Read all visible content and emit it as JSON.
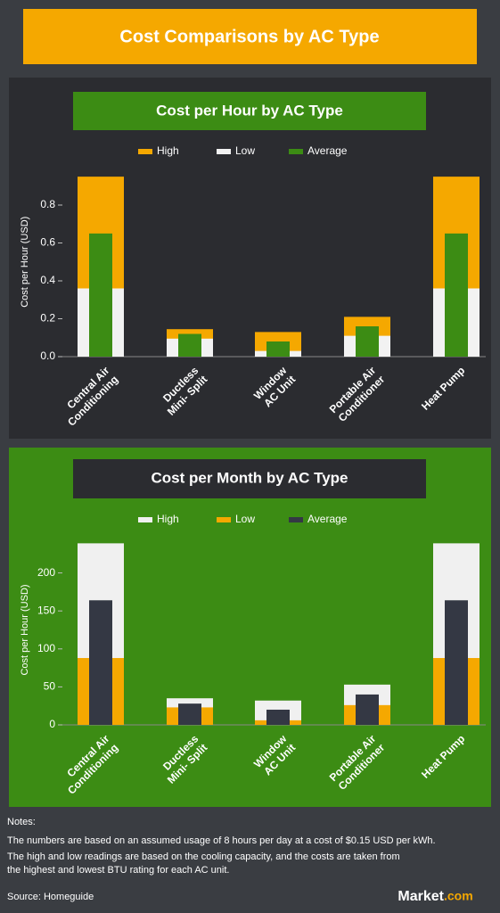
{
  "header": {
    "title": "Cost Comparisons by AC Type"
  },
  "chart_data": [
    {
      "type": "bar",
      "title": "Cost per Hour by AC Type",
      "y_label": "Cost per Hour (USD)",
      "categories": [
        [
          "Central Air",
          "Conditioning"
        ],
        [
          "Ductless",
          "Mini- Split"
        ],
        [
          "Window",
          "AC Unit"
        ],
        [
          "Portable Air",
          "Conditioner"
        ],
        [
          "Heat Pump"
        ]
      ],
      "series": [
        {
          "name": "High",
          "color": "#f5a800",
          "values": [
            0.95,
            0.145,
            0.13,
            0.21,
            0.95
          ]
        },
        {
          "name": "Low",
          "color": "#f2f2f2",
          "values": [
            0.36,
            0.095,
            0.03,
            0.11,
            0.36
          ]
        },
        {
          "name": "Average",
          "color": "#3c8c14",
          "values": [
            0.65,
            0.12,
            0.08,
            0.16,
            0.65
          ]
        }
      ],
      "ylim": [
        0,
        1
      ],
      "yticks": [
        {
          "value": 0,
          "label": "0.0"
        },
        0.2,
        0.4,
        0.6,
        0.8
      ]
    },
    {
      "type": "bar",
      "title": "Cost per Month by AC Type",
      "y_label": "Cost per Hour (USD)",
      "categories": [
        [
          "Central Air",
          "Conditioning"
        ],
        [
          "Ductless",
          "Mini- Split"
        ],
        [
          "Window",
          "AC Unit"
        ],
        [
          "Portable Air",
          "Conditioner"
        ],
        [
          "Heat Pump"
        ]
      ],
      "series": [
        {
          "name": "High",
          "color": "#f0f0f0",
          "values": [
            239,
            35,
            32,
            53,
            239
          ]
        },
        {
          "name": "Low",
          "color": "#f5a800",
          "values": [
            88,
            23,
            6,
            26,
            88
          ]
        },
        {
          "name": "Average",
          "color": "#343844",
          "values": [
            164,
            28,
            20,
            40,
            164
          ]
        }
      ],
      "ylim": [
        0,
        250
      ],
      "yticks": [
        0,
        50,
        100,
        150,
        200
      ]
    }
  ],
  "notes": {
    "heading": "Notes:",
    "lines": [
      "The numbers are based on an assumed usage of 8 hours per day at a cost of $0.15 USD per kWh.",
      "The high and low readings are based on the cooling capacity, and the costs are taken from",
      "the highest and lowest BTU rating for each AC unit."
    ],
    "source": "Source: Homeguide"
  },
  "logo": {
    "main": "Market",
    "suffix": ".com"
  }
}
